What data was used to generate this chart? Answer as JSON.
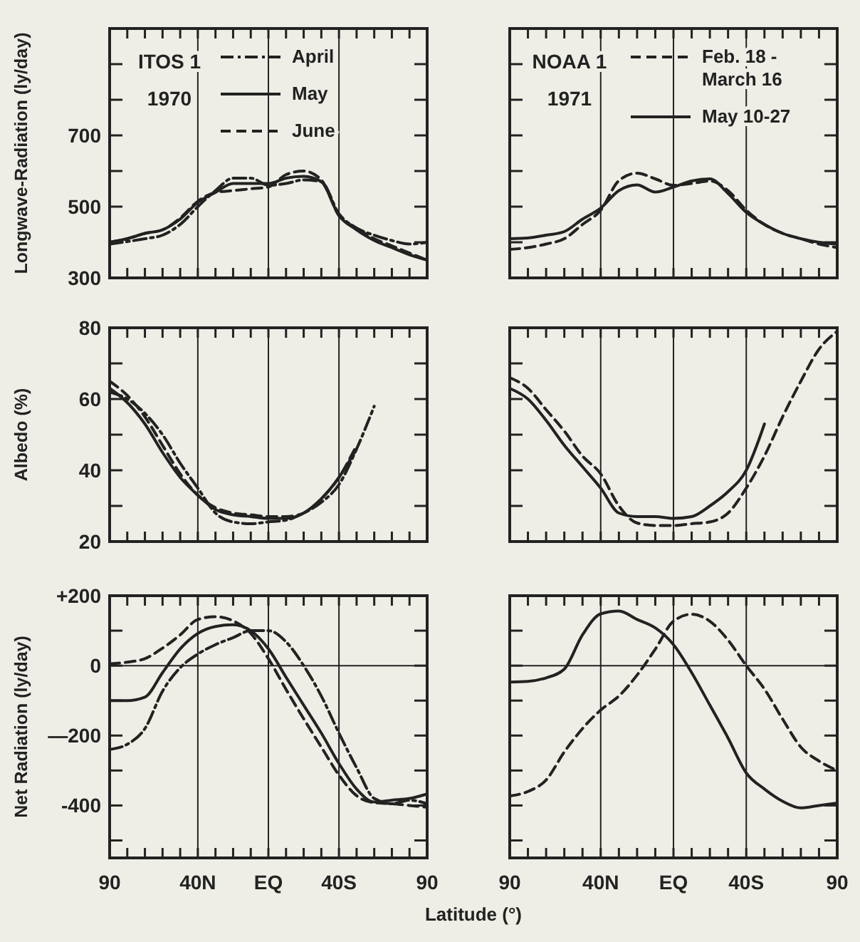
{
  "chart_data": [
    {
      "type": "line",
      "title": "ITOS 1",
      "subtitle": "1970",
      "ylabel": "Longwave-Radiation (ly/day)",
      "x": [
        90,
        80,
        70,
        60,
        50,
        40,
        30,
        20,
        10,
        0,
        -10,
        -20,
        -30,
        -40,
        -50,
        -60,
        -70,
        -80,
        -90
      ],
      "xlim": [
        90,
        -90
      ],
      "xticks": [
        90,
        80,
        70,
        60,
        50,
        40,
        30,
        20,
        10,
        0,
        -10,
        -20,
        -30,
        -40,
        -50,
        -60,
        -70,
        -80,
        -90
      ],
      "ylim": [
        300,
        1000
      ],
      "yticks": [
        300,
        {
          "value": 400,
          "label": null
        },
        500,
        {
          "value": 600,
          "label": null
        },
        700,
        {
          "value": 800,
          "label": null
        },
        {
          "value": 900,
          "label": null
        }
      ],
      "grid": "x",
      "legend": "top right",
      "tick_labels": "y",
      "series": [
        {
          "name": "April",
          "color": "#222222",
          "line_style": "dashdot",
          "values": [
            395,
            402,
            410,
            420,
            450,
            500,
            545,
            580,
            580,
            560,
            565,
            575,
            570,
            480,
            440,
            420,
            405,
            395,
            400
          ]
        },
        {
          "name": "May",
          "color": "#222222",
          "line_style": "solid",
          "values": [
            400,
            410,
            425,
            435,
            465,
            512,
            540,
            565,
            565,
            565,
            580,
            585,
            570,
            475,
            435,
            405,
            385,
            365,
            350
          ]
        },
        {
          "name": "June",
          "color": "#222222",
          "line_style": "dashed",
          "values": [
            400,
            410,
            425,
            435,
            468,
            515,
            540,
            545,
            550,
            555,
            590,
            600,
            575,
            475,
            440,
            410,
            390,
            370,
            350
          ]
        }
      ]
    },
    {
      "type": "line",
      "title": "NOAA 1",
      "subtitle": "1971",
      "x": [
        90,
        80,
        70,
        60,
        50,
        40,
        30,
        20,
        10,
        0,
        -10,
        -20,
        -30,
        -40,
        -50,
        -60,
        -70,
        -80,
        -90
      ],
      "xlim": [
        90,
        -90
      ],
      "xticks": [
        90,
        80,
        70,
        60,
        50,
        40,
        30,
        20,
        10,
        0,
        -10,
        -20,
        -30,
        -40,
        -50,
        -60,
        -70,
        -80,
        -90
      ],
      "ylim": [
        300,
        1000
      ],
      "yticks": [
        300,
        400,
        500,
        600,
        700,
        800,
        900
      ],
      "grid": "x",
      "legend": "top right",
      "tick_labels": false,
      "series": [
        {
          "name": "Feb. 18 - March 16",
          "color": "#222222",
          "line_style": "dashed",
          "values": [
            380,
            385,
            395,
            410,
            450,
            490,
            573,
            594,
            578,
            560,
            565,
            572,
            545,
            490,
            450,
            425,
            410,
            395,
            385
          ]
        },
        {
          "name": "May 10-27",
          "color": "#222222",
          "line_style": "solid",
          "values": [
            410,
            412,
            420,
            430,
            465,
            496,
            545,
            561,
            541,
            555,
            572,
            578,
            537,
            484,
            450,
            425,
            410,
            400,
            395
          ]
        }
      ]
    },
    {
      "type": "line",
      "ylabel": "Albedo (%)",
      "x": [
        90,
        80,
        70,
        60,
        50,
        40,
        30,
        20,
        10,
        0,
        -10,
        -20,
        -30,
        -40,
        -50,
        -60
      ],
      "xlim": [
        90,
        -90
      ],
      "xticks": [
        90,
        80,
        70,
        60,
        50,
        40,
        30,
        20,
        10,
        0,
        -10,
        -20,
        -30,
        -40,
        -50,
        -60,
        -70,
        -80,
        -90
      ],
      "ylim": [
        20,
        80
      ],
      "yticks": [
        20,
        {
          "value": 30,
          "label": null
        },
        40,
        {
          "value": 50,
          "label": null
        },
        60,
        {
          "value": 70,
          "label": null
        },
        80
      ],
      "grid": "x",
      "tick_labels": "y",
      "series": [
        {
          "color": "#222222",
          "line_style": "dashdot",
          "values": [
            62,
            60,
            56,
            50,
            42,
            35,
            28,
            25.5,
            25,
            25.5,
            26,
            28,
            31,
            36,
            46,
            58
          ]
        },
        {
          "color": "#222222",
          "line_style": "solid",
          "values": [
            63,
            59,
            53,
            45,
            38,
            33,
            29,
            27.5,
            27,
            26.5,
            26.5,
            28,
            32,
            38,
            46,
            null
          ]
        },
        {
          "color": "#222222",
          "line_style": "dashed",
          "values": [
            65,
            61,
            55,
            47,
            39,
            33,
            29.5,
            28,
            27.5,
            27,
            27,
            28,
            32,
            38,
            47,
            null
          ]
        }
      ]
    },
    {
      "type": "line",
      "x": [
        90,
        80,
        70,
        60,
        50,
        40,
        30,
        20,
        10,
        0,
        -10,
        -20,
        -30,
        -40,
        -50,
        -60,
        -70,
        -80,
        -90
      ],
      "xlim": [
        90,
        -90
      ],
      "xticks": [
        90,
        80,
        70,
        60,
        50,
        40,
        30,
        20,
        10,
        0,
        -10,
        -20,
        -30,
        -40,
        -50,
        -60,
        -70,
        -80,
        -90
      ],
      "ylim": [
        20,
        80
      ],
      "yticks": [
        20,
        30,
        40,
        50,
        60,
        70,
        80
      ],
      "grid": "x",
      "tick_labels": false,
      "series": [
        {
          "color": "#222222",
          "line_style": "dashed",
          "values": [
            66,
            63,
            57,
            51,
            44,
            39,
            30,
            25.2,
            24.5,
            24.5,
            25,
            25.5,
            28,
            35,
            44,
            55,
            65,
            74,
            79
          ]
        },
        {
          "color": "#222222",
          "line_style": "solid",
          "values": [
            63,
            60,
            54,
            47,
            41,
            35,
            28,
            27,
            27,
            26.5,
            27,
            30,
            34,
            40,
            53,
            null,
            null,
            null,
            null
          ]
        }
      ]
    },
    {
      "type": "line",
      "ylabel": "Net Radiation (ly/day)",
      "xlabel": "Latitude (°)",
      "x": [
        90,
        80,
        70,
        60,
        50,
        40,
        30,
        20,
        10,
        0,
        -10,
        -20,
        -30,
        -40,
        -50,
        -60,
        -70,
        -80,
        -90
      ],
      "xlim": [
        90,
        -90
      ],
      "xticks": [
        {
          "value": 90,
          "label": "90"
        },
        {
          "value": 80,
          "label": null
        },
        {
          "value": 70,
          "label": null
        },
        {
          "value": 60,
          "label": null
        },
        {
          "value": 50,
          "label": null
        },
        {
          "value": 40,
          "label": "40N"
        },
        {
          "value": 30,
          "label": null
        },
        {
          "value": 20,
          "label": null
        },
        {
          "value": 10,
          "label": null
        },
        {
          "value": 0,
          "label": "EQ"
        },
        {
          "value": -10,
          "label": null
        },
        {
          "value": -20,
          "label": null
        },
        {
          "value": -30,
          "label": null
        },
        {
          "value": -40,
          "label": "40S"
        },
        {
          "value": -50,
          "label": null
        },
        {
          "value": -60,
          "label": null
        },
        {
          "value": -70,
          "label": null
        },
        {
          "value": -80,
          "label": null
        },
        {
          "value": -90,
          "label": "90"
        }
      ],
      "ylim": [
        -550,
        200
      ],
      "yticks": [
        {
          "value": -500,
          "label": null
        },
        -400,
        {
          "value": -300,
          "label": null
        },
        {
          "value": -200,
          "label": "—200"
        },
        {
          "value": -100,
          "label": null
        },
        0,
        {
          "value": 100,
          "label": null
        },
        {
          "value": 200,
          "label": "+200"
        }
      ],
      "grid": "x",
      "ref_lines": [
        {
          "axis": "y",
          "value": 0
        }
      ],
      "series": [
        {
          "color": "#222222",
          "line_style": "dashdot",
          "values": [
            -240,
            -225,
            -180,
            -73,
            -6,
            33,
            60,
            80,
            100,
            100,
            68,
            0,
            -87,
            -193,
            -292,
            -380,
            -395,
            -385,
            -395
          ]
        },
        {
          "color": "#222222",
          "line_style": "solid",
          "values": [
            -100,
            -100,
            -90,
            -20,
            48,
            92,
            112,
            117,
            100,
            48,
            -33,
            -113,
            -193,
            -280,
            -353,
            -390,
            -385,
            -380,
            -367
          ]
        },
        {
          "color": "#222222",
          "line_style": "dashed",
          "values": [
            5,
            10,
            20,
            50,
            88,
            132,
            140,
            128,
            92,
            20,
            -68,
            -152,
            -233,
            -313,
            -372,
            -392,
            -395,
            -400,
            -405
          ]
        }
      ]
    },
    {
      "type": "line",
      "x": [
        90,
        80,
        70,
        60,
        50,
        40,
        30,
        20,
        10,
        0,
        -10,
        -20,
        -30,
        -40,
        -50,
        -60,
        -70,
        -80,
        -90
      ],
      "xlim": [
        90,
        -90
      ],
      "xticks": [
        {
          "value": 90,
          "label": "90"
        },
        {
          "value": 80,
          "label": null
        },
        {
          "value": 70,
          "label": null
        },
        {
          "value": 60,
          "label": null
        },
        {
          "value": 50,
          "label": null
        },
        {
          "value": 40,
          "label": "40N"
        },
        {
          "value": 30,
          "label": null
        },
        {
          "value": 20,
          "label": null
        },
        {
          "value": 10,
          "label": null
        },
        {
          "value": 0,
          "label": "EQ"
        },
        {
          "value": -10,
          "label": null
        },
        {
          "value": -20,
          "label": null
        },
        {
          "value": -30,
          "label": null
        },
        {
          "value": -40,
          "label": "40S"
        },
        {
          "value": -50,
          "label": null
        },
        {
          "value": -60,
          "label": null
        },
        {
          "value": -70,
          "label": null
        },
        {
          "value": -80,
          "label": null
        },
        {
          "value": -90,
          "label": "90"
        }
      ],
      "ylim": [
        -550,
        200
      ],
      "yticks": [
        -500,
        -400,
        -300,
        -200,
        -100,
        0,
        100,
        200
      ],
      "grid": "x",
      "ref_lines": [
        {
          "axis": "y",
          "value": 0
        }
      ],
      "tick_labels": "x",
      "series": [
        {
          "color": "#222222",
          "line_style": "dashed",
          "values": [
            -373,
            -360,
            -327,
            -247,
            -180,
            -127,
            -87,
            -27,
            47,
            127,
            147,
            127,
            73,
            0,
            -67,
            -153,
            -233,
            -273,
            -300
          ]
        },
        {
          "color": "#222222",
          "line_style": "solid",
          "values": [
            -47,
            -45,
            -35,
            -10,
            88,
            148,
            156,
            132,
            108,
            60,
            -20,
            -113,
            -207,
            -307,
            -353,
            -388,
            -407,
            -400,
            -393
          ]
        }
      ]
    }
  ]
}
